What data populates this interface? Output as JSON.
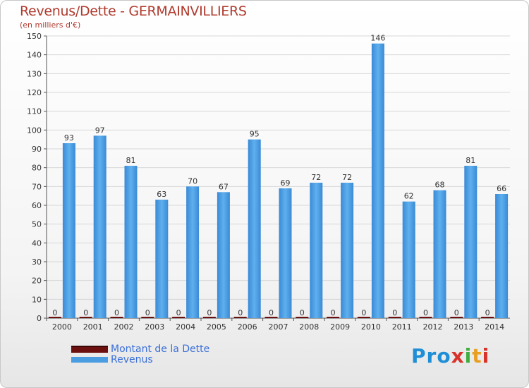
{
  "header": {
    "title": "Revenus/Dette - GERMAINVILLIERS",
    "subtitle": "(en milliers d'€)"
  },
  "legend": {
    "debt_label": "Montant de la Dette",
    "revenue_label": "Revenus"
  },
  "logo": {
    "text": "Proxiti",
    "colors": [
      "#1e8fd6",
      "#e8a020",
      "#3fae3f",
      "#d8322a"
    ]
  },
  "colors": {
    "revenue": "#4a9de0",
    "debt": "#6b0f0f",
    "grid": "#d8d8d8",
    "label": "#333333"
  },
  "chart_data": {
    "type": "bar",
    "title": "Revenus/Dette - GERMAINVILLIERS",
    "ylabel": "(en milliers d'€)",
    "xlabel": "",
    "ylim": [
      0,
      150
    ],
    "ytick_step": 10,
    "grid": true,
    "legend_position": "bottom-left",
    "categories": [
      "2000",
      "2001",
      "2002",
      "2003",
      "2004",
      "2005",
      "2006",
      "2007",
      "2008",
      "2009",
      "2010",
      "2011",
      "2012",
      "2013",
      "2014"
    ],
    "series": [
      {
        "name": "Montant de la Dette",
        "values": [
          0,
          0,
          0,
          0,
          0,
          0,
          0,
          0,
          0,
          0,
          0,
          0,
          0,
          0,
          0
        ]
      },
      {
        "name": "Revenus",
        "values": [
          93,
          97,
          81,
          63,
          70,
          67,
          95,
          69,
          72,
          72,
          146,
          62,
          68,
          81,
          66
        ]
      }
    ]
  }
}
